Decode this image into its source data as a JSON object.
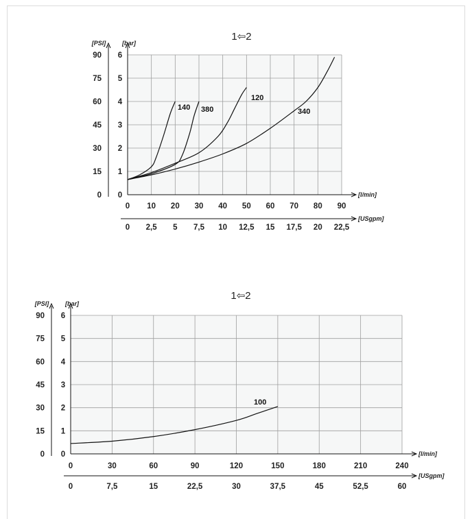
{
  "chart_data": [
    {
      "type": "line",
      "title": "1⇦2",
      "x_units": [
        "[l/min]",
        "[USgpm]"
      ],
      "y_units": [
        "[PSI]",
        "[bar]"
      ],
      "x_ticks_lmin": [
        "0",
        "10",
        "20",
        "30",
        "40",
        "50",
        "60",
        "70",
        "80",
        "90"
      ],
      "x_ticks_usgpm": [
        "0",
        "2,5",
        "5",
        "7,5",
        "10",
        "12,5",
        "15",
        "17,5",
        "20",
        "22,5"
      ],
      "y_ticks_bar": [
        "0",
        "1",
        "2",
        "3",
        "4",
        "5",
        "6"
      ],
      "y_ticks_psi": [
        "0",
        "15",
        "30",
        "45",
        "60",
        "75",
        "90"
      ],
      "xlim": [
        0,
        90
      ],
      "ylim": [
        0,
        6
      ],
      "grid": true,
      "series": [
        {
          "name": "140",
          "x": [
            0,
            5,
            10,
            12,
            15,
            18,
            20
          ],
          "y": [
            0.65,
            0.85,
            1.2,
            1.6,
            2.5,
            3.5,
            4.0
          ]
        },
        {
          "name": "380",
          "x": [
            0,
            10,
            20,
            23,
            26,
            28,
            30
          ],
          "y": [
            0.65,
            0.9,
            1.3,
            1.7,
            2.6,
            3.4,
            4.0
          ]
        },
        {
          "name": "120",
          "x": [
            0,
            10,
            20,
            30,
            38,
            42,
            45,
            48,
            50
          ],
          "y": [
            0.65,
            0.95,
            1.35,
            1.8,
            2.5,
            3.1,
            3.7,
            4.3,
            4.6
          ]
        },
        {
          "name": "340",
          "x": [
            0,
            10,
            20,
            30,
            40,
            50,
            60,
            70,
            75,
            80,
            84,
            87
          ],
          "y": [
            0.65,
            0.85,
            1.1,
            1.4,
            1.75,
            2.2,
            2.85,
            3.6,
            4.0,
            4.6,
            5.3,
            5.9
          ]
        }
      ]
    },
    {
      "type": "line",
      "title": "1⇦2",
      "x_units": [
        "[l/min]",
        "[USgpm]"
      ],
      "y_units": [
        "[PSI]",
        "[bar]"
      ],
      "x_ticks_lmin": [
        "0",
        "30",
        "60",
        "90",
        "120",
        "150",
        "180",
        "210",
        "240"
      ],
      "x_ticks_usgpm": [
        "0",
        "7,5",
        "15",
        "22,5",
        "30",
        "37,5",
        "45",
        "52,5",
        "60"
      ],
      "y_ticks_bar": [
        "0",
        "1",
        "2",
        "3",
        "4",
        "5",
        "6"
      ],
      "y_ticks_psi": [
        "0",
        "15",
        "30",
        "45",
        "60",
        "75",
        "90"
      ],
      "xlim": [
        0,
        240
      ],
      "ylim": [
        0,
        6
      ],
      "grid": true,
      "series": [
        {
          "name": "100",
          "x": [
            0,
            30,
            60,
            90,
            120,
            135,
            150
          ],
          "y": [
            0.45,
            0.55,
            0.75,
            1.05,
            1.45,
            1.75,
            2.05
          ]
        }
      ]
    }
  ]
}
